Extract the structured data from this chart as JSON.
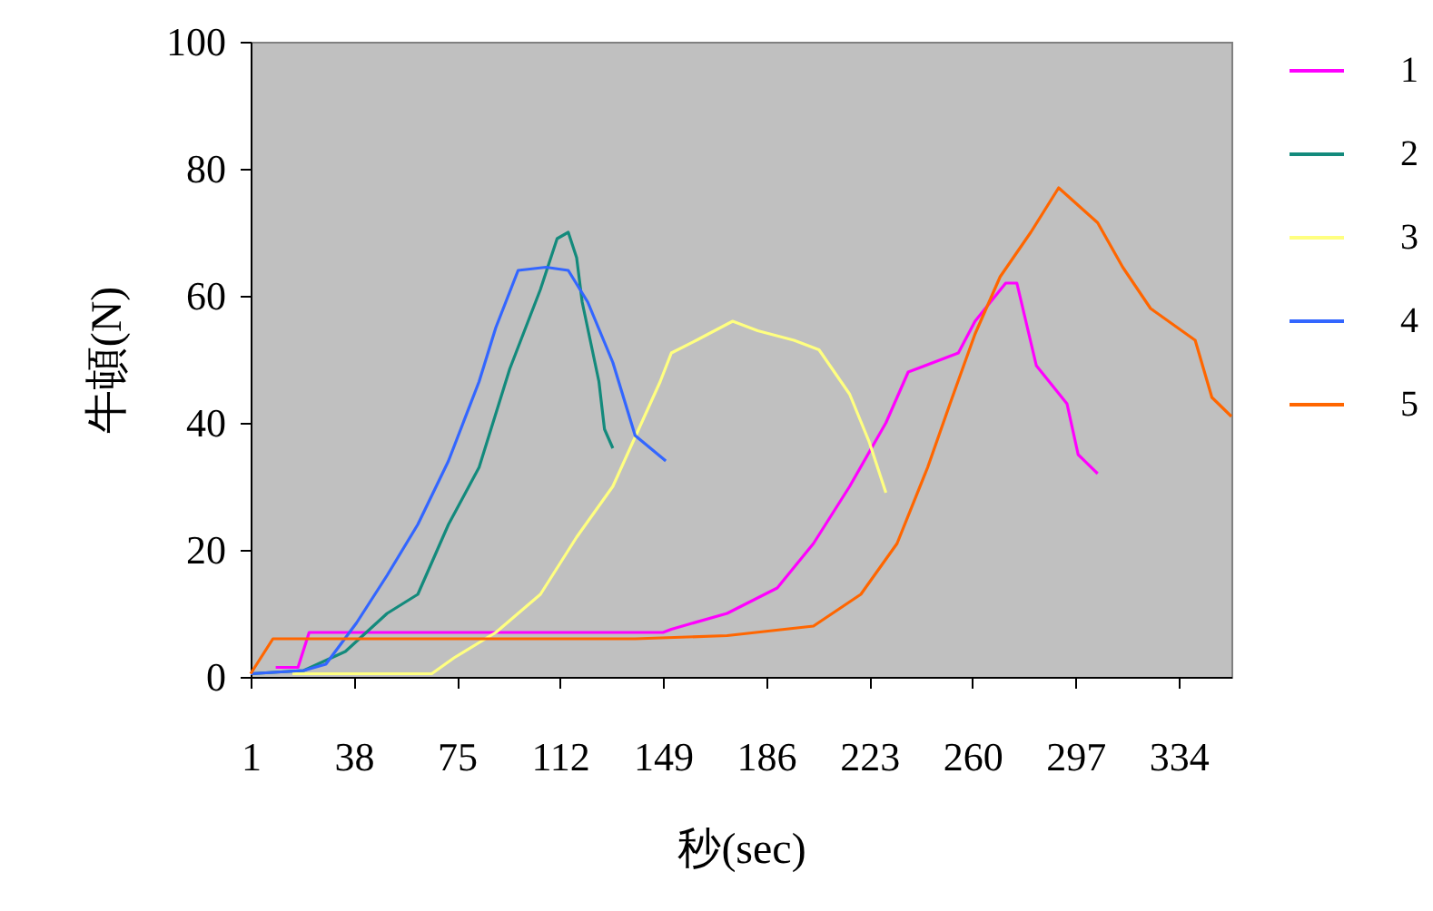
{
  "chart_data": {
    "type": "line",
    "xlabel": "秒(sec)",
    "ylabel": "牛頓(N)",
    "xlim": [
      1,
      353
    ],
    "xticks": [
      1,
      38,
      75,
      112,
      149,
      186,
      223,
      260,
      297,
      334
    ],
    "ylim": [
      0,
      100
    ],
    "yticks": [
      0,
      20,
      40,
      60,
      80,
      100
    ],
    "grid": false,
    "legend": "right",
    "marker": "none",
    "line_style": "solid",
    "series": [
      {
        "name": "1",
        "color": "#ff00ff",
        "x": [
          10,
          18,
          22,
          100,
          149,
          152,
          172,
          190,
          203,
          216,
          229,
          237,
          255,
          261,
          272,
          276,
          283,
          294,
          298,
          305
        ],
        "values": [
          1.5,
          1.5,
          7,
          7,
          7,
          7.5,
          10,
          14,
          21,
          30,
          40,
          48,
          51,
          56,
          62,
          62,
          49,
          43,
          35,
          32
        ]
      },
      {
        "name": "2",
        "color": "#138a7c",
        "x": [
          1,
          20,
          35,
          50,
          61,
          72,
          83,
          94,
          105,
          111,
          115,
          118,
          120,
          126,
          128,
          131
        ],
        "values": [
          0.5,
          1,
          4,
          10,
          13,
          24,
          33,
          48.5,
          61,
          69,
          70,
          66,
          59,
          46.5,
          39,
          36
        ]
      },
      {
        "name": "3",
        "color": "#ffff80",
        "x": [
          16,
          66,
          74,
          89,
          105,
          118,
          131,
          148,
          152,
          161,
          174,
          183,
          196,
          205,
          216,
          223,
          229
        ],
        "values": [
          0.5,
          0.5,
          3,
          7,
          13,
          22,
          30,
          46.5,
          51,
          53,
          56,
          54.5,
          53,
          51.5,
          44.5,
          37,
          29
        ]
      },
      {
        "name": "4",
        "color": "#3366ff",
        "x": [
          1,
          20,
          28,
          39,
          50,
          61,
          72,
          83,
          89,
          97,
          107,
          115,
          122,
          131,
          139,
          150
        ],
        "values": [
          0.5,
          1,
          2,
          8.5,
          16,
          24,
          34,
          46.5,
          55,
          64,
          64.5,
          64,
          59,
          49.5,
          38,
          34
        ]
      },
      {
        "name": "5",
        "color": "#ff6600",
        "x": [
          1,
          9,
          60,
          139,
          172,
          203,
          220,
          233,
          244,
          252,
          261,
          270,
          281,
          291,
          305,
          314,
          324,
          340,
          346,
          353
        ],
        "values": [
          0.5,
          6,
          6,
          6,
          6.5,
          8,
          13,
          21,
          33,
          43,
          54,
          63,
          70,
          77,
          71.5,
          64.5,
          58,
          53,
          44,
          41
        ]
      }
    ]
  }
}
